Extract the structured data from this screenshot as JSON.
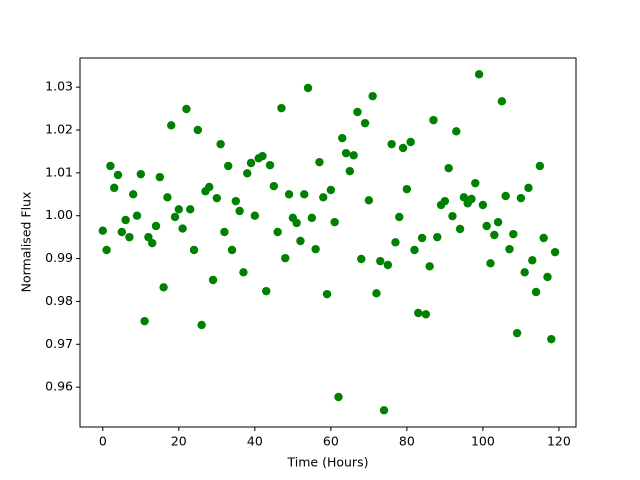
{
  "chart_data": {
    "type": "scatter",
    "x_label": "Time (Hours)",
    "y_label": "Normalised Flux",
    "color": "#008000",
    "x": [
      0,
      1,
      2,
      3,
      4,
      5,
      6,
      7,
      8,
      9,
      10,
      11,
      12,
      13,
      14,
      15,
      16,
      17,
      18,
      19,
      20,
      21,
      22,
      23,
      24,
      25,
      26,
      27,
      28,
      29,
      30,
      31,
      32,
      33,
      34,
      35,
      36,
      37,
      38,
      39,
      40,
      41,
      42,
      43,
      44,
      45,
      46,
      47,
      48,
      49,
      50,
      51,
      52,
      53,
      54,
      55,
      56,
      57,
      58,
      59,
      60,
      61,
      62,
      63,
      64,
      65,
      66,
      67,
      68,
      69,
      70,
      71,
      72,
      73,
      74,
      75,
      76,
      77,
      78,
      79,
      80,
      81,
      82,
      83,
      84,
      85,
      86,
      87,
      88,
      89,
      90,
      91,
      92,
      93,
      94,
      95,
      96,
      97,
      98,
      99,
      100,
      101,
      102,
      103,
      104,
      105,
      106,
      107,
      108,
      109,
      110,
      111,
      112,
      113,
      114,
      115,
      116,
      117,
      118,
      119
    ],
    "values": [
      0.9965,
      0.992,
      1.0116,
      1.0065,
      1.0095,
      0.9962,
      0.999,
      0.995,
      1.005,
      1.0,
      1.0097,
      0.9754,
      0.995,
      0.9936,
      0.9976,
      1.009,
      0.9833,
      1.0043,
      1.0211,
      0.9997,
      1.0015,
      0.997,
      1.0249,
      1.0015,
      0.992,
      1.02,
      0.9745,
      1.0057,
      1.0067,
      0.985,
      1.0041,
      1.0167,
      0.9962,
      1.0116,
      0.992,
      1.0034,
      1.0011,
      0.9868,
      1.0099,
      1.0123,
      1.0,
      1.0134,
      1.0139,
      0.9824,
      1.0118,
      1.0069,
      0.9962,
      1.0251,
      0.9901,
      1.005,
      0.9995,
      0.9983,
      0.9941,
      1.005,
      1.0298,
      0.9995,
      0.9922,
      1.0125,
      1.0043,
      0.9817,
      1.006,
      0.9985,
      0.9577,
      1.0181,
      1.0146,
      1.0104,
      1.0141,
      1.0242,
      0.9899,
      1.0216,
      1.0036,
      1.0279,
      0.9819,
      0.9894,
      0.9546,
      0.9885,
      1.0167,
      0.9938,
      0.9997,
      1.0158,
      1.0062,
      1.0172,
      0.992,
      0.9773,
      0.9948,
      0.977,
      0.9882,
      1.0223,
      0.995,
      1.0025,
      1.0034,
      1.0111,
      0.9999,
      1.0197,
      0.9969,
      1.0043,
      1.0029,
      1.0039,
      1.0076,
      1.033,
      1.0025,
      0.9976,
      0.9889,
      0.9955,
      0.9985,
      1.0267,
      1.0046,
      0.9922,
      0.9957,
      0.9726,
      1.0041,
      0.9868,
      1.0065,
      0.9896,
      0.9822,
      1.0116,
      0.9948,
      0.9857,
      0.9712,
      0.9915
    ],
    "xlim": [
      -6,
      124.5
    ],
    "xticks": [
      0,
      20,
      40,
      60,
      80,
      100,
      120
    ],
    "ylim": [
      0.9507,
      1.0368
    ],
    "yticks": [
      0.96,
      0.97,
      0.98,
      0.99,
      {
        "value": 1,
        "label": "1.00"
      },
      1.01,
      1.02,
      1.03
    ]
  }
}
